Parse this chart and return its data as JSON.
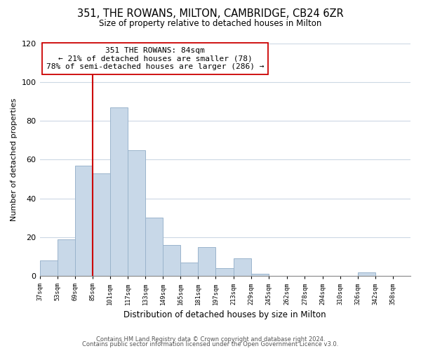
{
  "title": "351, THE ROWANS, MILTON, CAMBRIDGE, CB24 6ZR",
  "subtitle": "Size of property relative to detached houses in Milton",
  "xlabel": "Distribution of detached houses by size in Milton",
  "ylabel": "Number of detached properties",
  "bar_left_edges": [
    37,
    53,
    69,
    85,
    101,
    117,
    133,
    149,
    165,
    181,
    197,
    213,
    229,
    245,
    262,
    278,
    294,
    310,
    326,
    342
  ],
  "bar_heights": [
    8,
    19,
    57,
    53,
    87,
    65,
    30,
    16,
    7,
    15,
    4,
    9,
    1,
    0,
    0,
    0,
    0,
    0,
    2,
    0
  ],
  "bin_width": 16,
  "tick_labels": [
    "37sqm",
    "53sqm",
    "69sqm",
    "85sqm",
    "101sqm",
    "117sqm",
    "133sqm",
    "149sqm",
    "165sqm",
    "181sqm",
    "197sqm",
    "213sqm",
    "229sqm",
    "245sqm",
    "262sqm",
    "278sqm",
    "294sqm",
    "310sqm",
    "326sqm",
    "342sqm",
    "358sqm"
  ],
  "bar_color": "#c8d8e8",
  "bar_edge_color": "#9ab4cc",
  "property_line_x": 85,
  "property_line_color": "#cc0000",
  "annotation_text": "351 THE ROWANS: 84sqm\n← 21% of detached houses are smaller (78)\n78% of semi-detached houses are larger (286) →",
  "annotation_box_color": "#ffffff",
  "annotation_box_edge": "#cc0000",
  "ylim": [
    0,
    120
  ],
  "yticks": [
    0,
    20,
    40,
    60,
    80,
    100,
    120
  ],
  "xlim_min": 37,
  "xlim_max": 374,
  "background_color": "#ffffff",
  "grid_color": "#ccd8e4",
  "footnote1": "Contains HM Land Registry data © Crown copyright and database right 2024.",
  "footnote2": "Contains public sector information licensed under the Open Government Licence v3.0."
}
